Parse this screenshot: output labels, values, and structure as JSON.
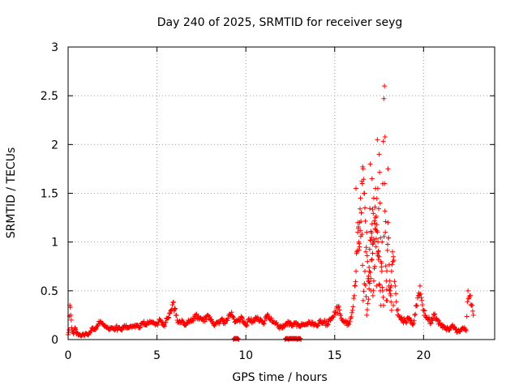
{
  "chart_data": {
    "type": "scatter",
    "title": "Day 240 of 2025, SRMTID for receiver seyg",
    "xlabel": "GPS time / hours",
    "ylabel": "SRMTID / TECUs",
    "xlim": [
      0,
      24
    ],
    "ylim": [
      0,
      3
    ],
    "xticks": [
      0,
      5,
      10,
      15,
      20
    ],
    "yticks": [
      0,
      0.5,
      1,
      1.5,
      2,
      2.5,
      3
    ],
    "xtick_labels": [
      "0",
      "5",
      "10",
      "15",
      "20"
    ],
    "ytick_labels": [
      "0",
      "0.5",
      "1",
      "1.5",
      "2",
      "2.5",
      "3"
    ],
    "grid": true,
    "marker": "plus",
    "series": [
      {
        "name": "SRMTID",
        "color": "#ff0000",
        "x": [
          0.0,
          0.05,
          0.1,
          0.15,
          0.2,
          0.25,
          0.3,
          0.35,
          0.4,
          0.45,
          0.5,
          0.6,
          0.7,
          0.8,
          0.9,
          1.0,
          1.1,
          1.2,
          1.3,
          1.4,
          1.5,
          1.6,
          1.7,
          1.8,
          1.9,
          2.0,
          2.1,
          2.2,
          2.3,
          2.4,
          2.5,
          2.6,
          2.7,
          2.8,
          2.9,
          3.0,
          3.2,
          3.4,
          3.6,
          3.8,
          4.0,
          4.2,
          4.4,
          4.6,
          4.8,
          5.0,
          5.2,
          5.4,
          5.6,
          5.8,
          5.9,
          6.0,
          6.1,
          6.2,
          6.4,
          6.6,
          6.8,
          7.0,
          7.2,
          7.4,
          7.6,
          7.8,
          8.0,
          8.2,
          8.4,
          8.6,
          8.8,
          9.0,
          9.2,
          9.4,
          9.6,
          9.8,
          10.0,
          10.2,
          10.4,
          10.6,
          10.8,
          11.0,
          11.2,
          11.4,
          11.6,
          11.8,
          12.0,
          12.2,
          12.4,
          12.6,
          12.8,
          13.0,
          13.2,
          13.4,
          13.6,
          13.8,
          14.0,
          14.2,
          14.4,
          14.6,
          14.8,
          15.0,
          15.2,
          15.4,
          15.6,
          15.8,
          15.9,
          16.0,
          16.1,
          16.15,
          16.2,
          16.25,
          16.3,
          16.35,
          16.4,
          16.45,
          16.5,
          16.55,
          16.6,
          16.65,
          16.7,
          16.75,
          16.8,
          16.85,
          16.9,
          16.95,
          17.0,
          17.05,
          17.1,
          17.15,
          17.2,
          17.25,
          17.3,
          17.35,
          17.4,
          17.45,
          17.5,
          17.55,
          17.6,
          17.65,
          17.7,
          17.75,
          17.8,
          17.85,
          17.9,
          17.95,
          18.0,
          18.05,
          18.1,
          18.15,
          18.2,
          18.25,
          18.3,
          18.4,
          18.5,
          18.6,
          18.8,
          19.0,
          19.2,
          19.4,
          19.5,
          19.6,
          19.7,
          19.8,
          19.9,
          20.0,
          20.2,
          20.4,
          20.6,
          20.8,
          21.0,
          21.2,
          21.4,
          21.6,
          21.8,
          22.0,
          22.2,
          22.4,
          22.5,
          22.6,
          22.7,
          22.8,
          9.3,
          9.6,
          12.2,
          12.4,
          12.9,
          13.1,
          16.3,
          16.4,
          16.5,
          16.6,
          16.7,
          16.8,
          17.3,
          17.6,
          17.8,
          17.9,
          18.0,
          18.1,
          18.2,
          16.2,
          16.9,
          17.2,
          17.5,
          18.3
        ],
        "y": [
          0.05,
          0.1,
          0.35,
          0.25,
          0.12,
          0.08,
          0.06,
          0.1,
          0.12,
          0.08,
          0.07,
          0.05,
          0.04,
          0.05,
          0.04,
          0.06,
          0.05,
          0.07,
          0.09,
          0.12,
          0.1,
          0.13,
          0.16,
          0.18,
          0.17,
          0.15,
          0.13,
          0.12,
          0.1,
          0.11,
          0.12,
          0.1,
          0.13,
          0.11,
          0.12,
          0.1,
          0.13,
          0.12,
          0.14,
          0.15,
          0.12,
          0.17,
          0.15,
          0.19,
          0.18,
          0.16,
          0.2,
          0.15,
          0.22,
          0.3,
          0.38,
          0.32,
          0.25,
          0.18,
          0.2,
          0.15,
          0.18,
          0.2,
          0.25,
          0.22,
          0.19,
          0.24,
          0.2,
          0.15,
          0.18,
          0.2,
          0.17,
          0.22,
          0.28,
          0.18,
          0.2,
          0.22,
          0.15,
          0.2,
          0.18,
          0.22,
          0.2,
          0.16,
          0.25,
          0.2,
          0.18,
          0.15,
          0.12,
          0.15,
          0.18,
          0.15,
          0.17,
          0.14,
          0.16,
          0.15,
          0.18,
          0.16,
          0.14,
          0.2,
          0.18,
          0.16,
          0.22,
          0.25,
          0.33,
          0.2,
          0.18,
          0.16,
          0.22,
          0.3,
          0.45,
          0.55,
          0.7,
          0.9,
          1.1,
          1.0,
          1.2,
          1.45,
          1.3,
          1.6,
          1.75,
          1.5,
          1.35,
          0.9,
          1.1,
          0.8,
          0.6,
          0.7,
          1.8,
          0.5,
          1.65,
          0.45,
          0.6,
          0.75,
          1.55,
          0.55,
          2.05,
          0.9,
          1.9,
          1.4,
          0.8,
          0.7,
          0.5,
          0.35,
          1.6,
          1.1,
          0.6,
          0.4,
          1.75,
          0.55,
          0.5,
          0.45,
          0.7,
          0.9,
          0.85,
          0.55,
          0.3,
          0.25,
          0.2,
          0.18,
          0.22,
          0.15,
          0.25,
          0.35,
          0.45,
          0.55,
          0.4,
          0.3,
          0.22,
          0.18,
          0.25,
          0.2,
          0.15,
          0.12,
          0.1,
          0.14,
          0.1,
          0.08,
          0.12,
          0.09,
          0.5,
          0.45,
          0.35,
          0.25,
          0.0,
          0.0,
          0.0,
          0.0,
          0.0,
          0.0,
          1.2,
          0.95,
          1.3,
          0.4,
          0.7,
          0.25,
          1.25,
          0.35,
          2.6,
          0.4,
          1.2,
          0.6,
          0.3,
          1.55,
          0.65,
          1.45,
          0.85,
          0.35
        ],
        "points_note": ""
      }
    ]
  }
}
